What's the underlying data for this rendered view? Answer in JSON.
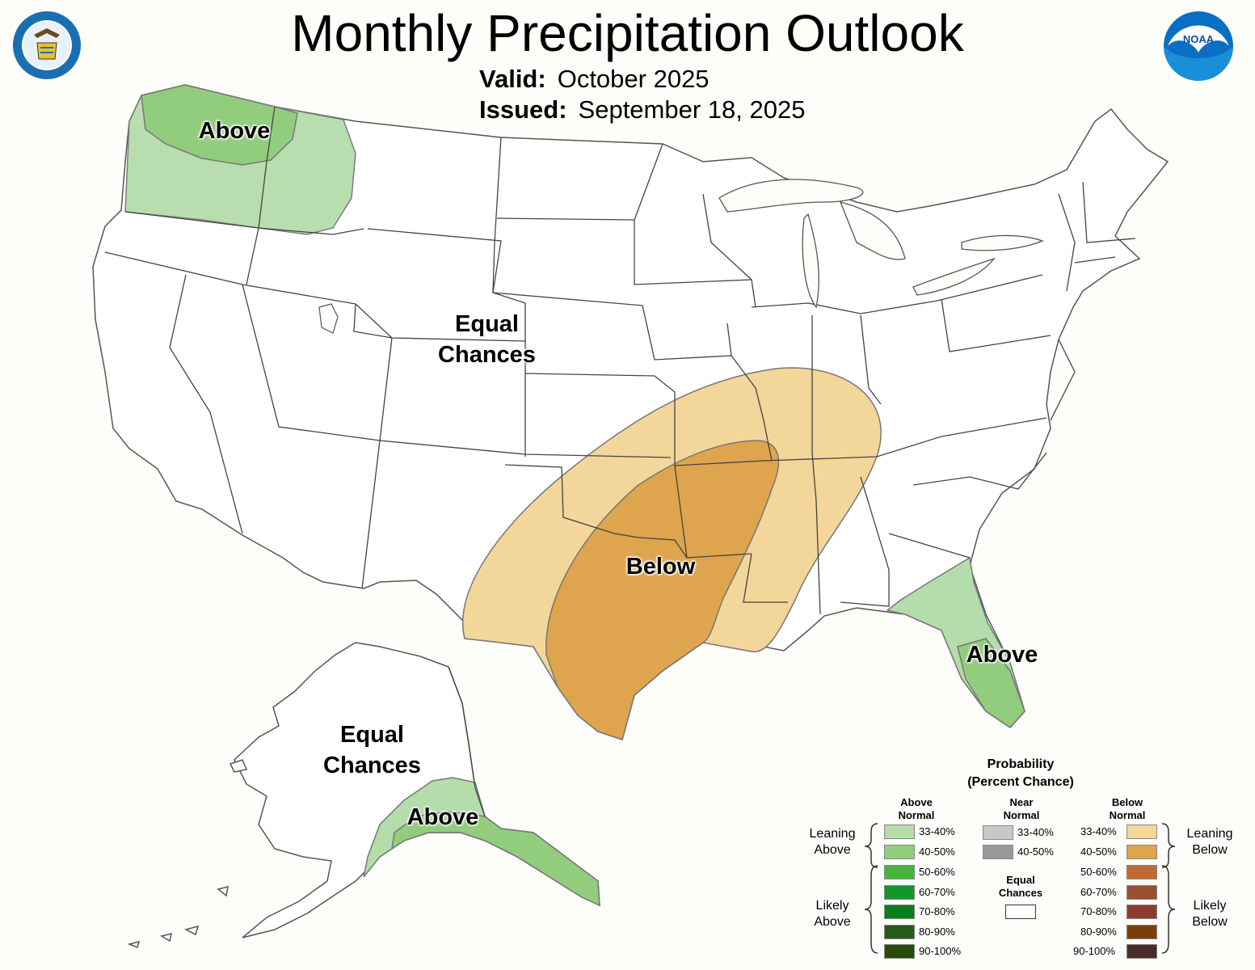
{
  "header": {
    "title": "Monthly Precipitation Outlook",
    "valid_label": "Valid:",
    "valid_value": "October 2025",
    "issued_label": "Issued:",
    "issued_value": "September 18, 2025"
  },
  "map": {
    "labels": {
      "northwest": "Above",
      "central": [
        "Equal",
        "Chances"
      ],
      "south": "Below",
      "florida": "Above",
      "alaska_ec": [
        "Equal",
        "Chances"
      ],
      "alaska_south": "Above"
    },
    "category_colors": {
      "above_33_40": "#b5dcab",
      "above_40_50": "#92cd7e",
      "below_33_40": "#f3d699",
      "below_40_50": "#dea54e",
      "state_lines": "#444444"
    }
  },
  "legend": {
    "title": [
      "Probability",
      "(Percent Chance)"
    ],
    "above_header": [
      "Above",
      "Normal"
    ],
    "near_header": [
      "Near",
      "Normal"
    ],
    "below_header": [
      "Below",
      "Normal"
    ],
    "equal_chances": [
      "Equal",
      "Chances"
    ],
    "equal_chances_color": "#ffffff",
    "left_groups": {
      "leaning": [
        "Leaning",
        "Above"
      ],
      "likely": [
        "Likely",
        "Above"
      ]
    },
    "right_groups": {
      "leaning": [
        "Leaning",
        "Below"
      ],
      "likely": [
        "Likely",
        "Below"
      ]
    },
    "above": [
      {
        "range": "33-40%",
        "color": "#b5dcab"
      },
      {
        "range": "40-50%",
        "color": "#92cd7e"
      },
      {
        "range": "50-60%",
        "color": "#44b43d"
      },
      {
        "range": "60-70%",
        "color": "#14962c"
      },
      {
        "range": "70-80%",
        "color": "#0c7a1e"
      },
      {
        "range": "80-90%",
        "color": "#285a1e"
      },
      {
        "range": "90-100%",
        "color": "#284a0e"
      }
    ],
    "near": [
      {
        "range": "33-40%",
        "color": "#c8c8c8"
      },
      {
        "range": "40-50%",
        "color": "#999999"
      }
    ],
    "below": [
      {
        "range": "33-40%",
        "color": "#f3d699"
      },
      {
        "range": "40-50%",
        "color": "#dea54e"
      },
      {
        "range": "50-60%",
        "color": "#c06a30"
      },
      {
        "range": "60-70%",
        "color": "#9a5030"
      },
      {
        "range": "70-80%",
        "color": "#8a3c30"
      },
      {
        "range": "80-90%",
        "color": "#7a3e0a"
      },
      {
        "range": "90-100%",
        "color": "#4a2c28"
      }
    ]
  },
  "logos": {
    "left": "department-of-commerce-seal",
    "right": "noaa-logo",
    "right_text": "NOAA"
  }
}
